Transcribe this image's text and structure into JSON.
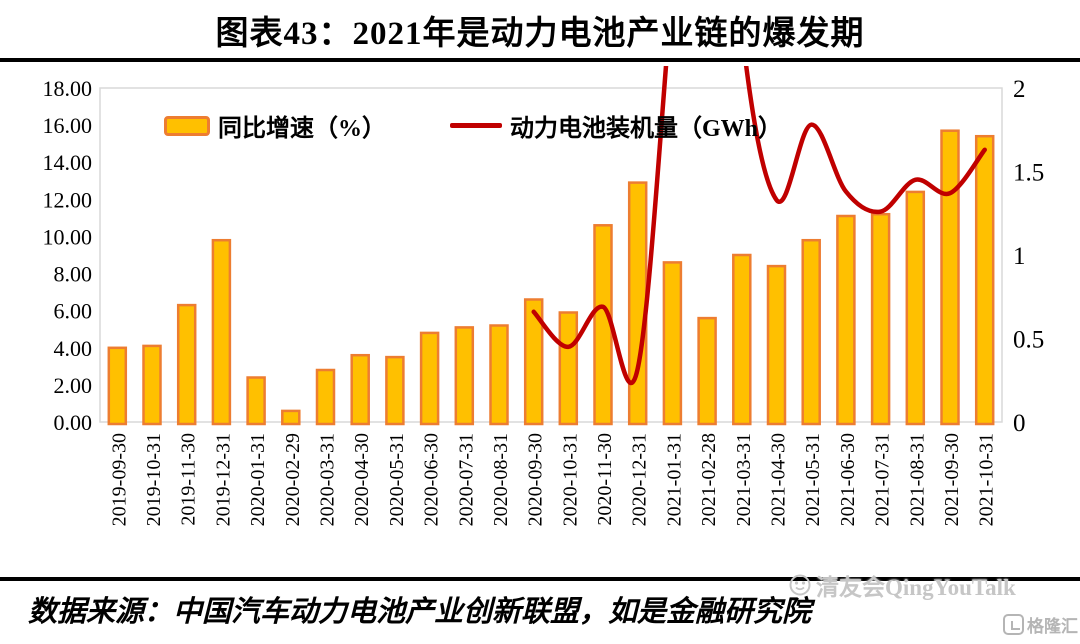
{
  "title": "图表43：2021年是动力电池产业链的爆发期",
  "legend": {
    "bar_label": "同比增速（%）",
    "line_label": "动力电池装机量（GWh）"
  },
  "footer": {
    "source": "数据来源：中国汽车动力电池产业创新联盟，如是金融研究院"
  },
  "watermark": {
    "text": "清友会QingYouTalk",
    "logo_text": "格隆汇"
  },
  "colors": {
    "bar_fill": "#FFC000",
    "bar_border": "#ED7D31",
    "line": "#C00000",
    "plot_border": "#D9D9D9",
    "text": "#000000",
    "watermark": "#C6C6C6"
  },
  "chart_data": {
    "type": "bar",
    "title": "图表43：2021年是动力电池产业链的爆发期",
    "categories": [
      "2019-09-30",
      "2019-10-31",
      "2019-11-30",
      "2019-12-31",
      "2020-01-31",
      "2020-02-29",
      "2020-03-31",
      "2020-04-30",
      "2020-05-31",
      "2020-06-30",
      "2020-07-31",
      "2020-08-31",
      "2020-09-30",
      "2020-10-31",
      "2020-11-30",
      "2020-12-31",
      "2021-01-31",
      "2021-02-28",
      "2021-03-31",
      "2021-04-30",
      "2021-05-31",
      "2021-06-30",
      "2021-07-31",
      "2021-08-31",
      "2021-09-30",
      "2021-10-31"
    ],
    "series": [
      {
        "name": "同比增速（%）",
        "type": "bar",
        "axis": "left",
        "values": [
          4.0,
          4.1,
          6.3,
          9.8,
          2.4,
          0.6,
          2.8,
          3.6,
          3.5,
          4.8,
          5.1,
          5.2,
          6.6,
          5.9,
          10.6,
          12.9,
          8.6,
          5.6,
          9.0,
          8.4,
          9.8,
          11.1,
          11.2,
          12.4,
          15.7,
          15.4
        ]
      },
      {
        "name": "动力电池装机量（GWh）",
        "type": "line",
        "axis": "right",
        "values": [
          null,
          null,
          null,
          null,
          null,
          null,
          null,
          null,
          null,
          null,
          null,
          null,
          0.66,
          0.45,
          0.69,
          0.32,
          null,
          null,
          null,
          1.33,
          1.78,
          1.38,
          1.26,
          1.45,
          1.37,
          1.63
        ],
        "note": "values for 2021-01-31 to 2021-03-31 rise above the 2.0 axis maximum and are clipped off-chart"
      }
    ],
    "line_render_points": [
      [
        12,
        0.66
      ],
      [
        13,
        0.45
      ],
      [
        14,
        0.69
      ],
      [
        15,
        0.32
      ],
      [
        16,
        2.6
      ],
      [
        17,
        5.0
      ],
      [
        18,
        2.35
      ],
      [
        19,
        1.33
      ],
      [
        20,
        1.78
      ],
      [
        21,
        1.38
      ],
      [
        22,
        1.26
      ],
      [
        23,
        1.45
      ],
      [
        24,
        1.37
      ],
      [
        25,
        1.63
      ]
    ],
    "left_axis": {
      "min": 0,
      "max": 18,
      "ticks": [
        "0.00",
        "2.00",
        "4.00",
        "6.00",
        "8.00",
        "10.00",
        "12.00",
        "14.00",
        "16.00",
        "18.00"
      ]
    },
    "right_axis": {
      "min": 0,
      "max": 2,
      "ticks": [
        "0",
        "0.5",
        "1",
        "1.5",
        "2"
      ]
    },
    "grid": false,
    "legend_position": "top-inside"
  }
}
